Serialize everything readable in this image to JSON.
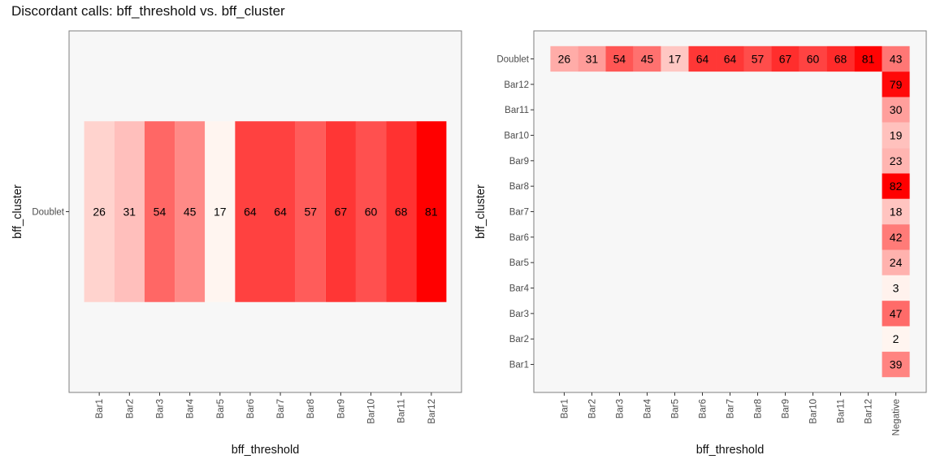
{
  "title": "Discordant calls: bff_threshold vs. bff_cluster",
  "colors": {
    "low": "#fff5f0",
    "high": "#ff0000",
    "panel_bg": "#f7f7f7",
    "border": "#7f7f7f"
  },
  "chart_data": [
    {
      "type": "heatmap",
      "xlabel": "bff_threshold",
      "ylabel": "bff_cluster",
      "x_categories": [
        "Bar1",
        "Bar2",
        "Bar3",
        "Bar4",
        "Bar5",
        "Bar6",
        "Bar7",
        "Bar8",
        "Bar9",
        "Bar10",
        "Bar11",
        "Bar12"
      ],
      "y_categories": [
        "Doublet"
      ],
      "cells": [
        {
          "x": "Bar1",
          "y": "Doublet",
          "value": 26
        },
        {
          "x": "Bar2",
          "y": "Doublet",
          "value": 31
        },
        {
          "x": "Bar3",
          "y": "Doublet",
          "value": 54
        },
        {
          "x": "Bar4",
          "y": "Doublet",
          "value": 45
        },
        {
          "x": "Bar5",
          "y": "Doublet",
          "value": 17
        },
        {
          "x": "Bar6",
          "y": "Doublet",
          "value": 64
        },
        {
          "x": "Bar7",
          "y": "Doublet",
          "value": 64
        },
        {
          "x": "Bar8",
          "y": "Doublet",
          "value": 57
        },
        {
          "x": "Bar9",
          "y": "Doublet",
          "value": 67
        },
        {
          "x": "Bar10",
          "y": "Doublet",
          "value": 60
        },
        {
          "x": "Bar11",
          "y": "Doublet",
          "value": 68
        },
        {
          "x": "Bar12",
          "y": "Doublet",
          "value": 81
        }
      ],
      "grid": false
    },
    {
      "type": "heatmap",
      "xlabel": "bff_threshold",
      "ylabel": "bff_cluster",
      "x_categories": [
        "Bar1",
        "Bar2",
        "Bar3",
        "Bar4",
        "Bar5",
        "Bar6",
        "Bar7",
        "Bar8",
        "Bar9",
        "Bar10",
        "Bar11",
        "Bar12",
        "Negative"
      ],
      "y_categories": [
        "Bar1",
        "Bar2",
        "Bar3",
        "Bar4",
        "Bar5",
        "Bar6",
        "Bar7",
        "Bar8",
        "Bar9",
        "Bar10",
        "Bar11",
        "Bar12",
        "Doublet"
      ],
      "cells": [
        {
          "x": "Bar1",
          "y": "Doublet",
          "value": 26
        },
        {
          "x": "Bar2",
          "y": "Doublet",
          "value": 31
        },
        {
          "x": "Bar3",
          "y": "Doublet",
          "value": 54
        },
        {
          "x": "Bar4",
          "y": "Doublet",
          "value": 45
        },
        {
          "x": "Bar5",
          "y": "Doublet",
          "value": 17
        },
        {
          "x": "Bar6",
          "y": "Doublet",
          "value": 64
        },
        {
          "x": "Bar7",
          "y": "Doublet",
          "value": 64
        },
        {
          "x": "Bar8",
          "y": "Doublet",
          "value": 57
        },
        {
          "x": "Bar9",
          "y": "Doublet",
          "value": 67
        },
        {
          "x": "Bar10",
          "y": "Doublet",
          "value": 60
        },
        {
          "x": "Bar11",
          "y": "Doublet",
          "value": 68
        },
        {
          "x": "Bar12",
          "y": "Doublet",
          "value": 81
        },
        {
          "x": "Negative",
          "y": "Doublet",
          "value": 43
        },
        {
          "x": "Negative",
          "y": "Bar12",
          "value": 79
        },
        {
          "x": "Negative",
          "y": "Bar11",
          "value": 30
        },
        {
          "x": "Negative",
          "y": "Bar10",
          "value": 19
        },
        {
          "x": "Negative",
          "y": "Bar9",
          "value": 23
        },
        {
          "x": "Negative",
          "y": "Bar8",
          "value": 82
        },
        {
          "x": "Negative",
          "y": "Bar7",
          "value": 18
        },
        {
          "x": "Negative",
          "y": "Bar6",
          "value": 42
        },
        {
          "x": "Negative",
          "y": "Bar5",
          "value": 24
        },
        {
          "x": "Negative",
          "y": "Bar4",
          "value": 3
        },
        {
          "x": "Negative",
          "y": "Bar3",
          "value": 47
        },
        {
          "x": "Negative",
          "y": "Bar2",
          "value": 2
        },
        {
          "x": "Negative",
          "y": "Bar1",
          "value": 39
        }
      ],
      "grid": false
    }
  ]
}
